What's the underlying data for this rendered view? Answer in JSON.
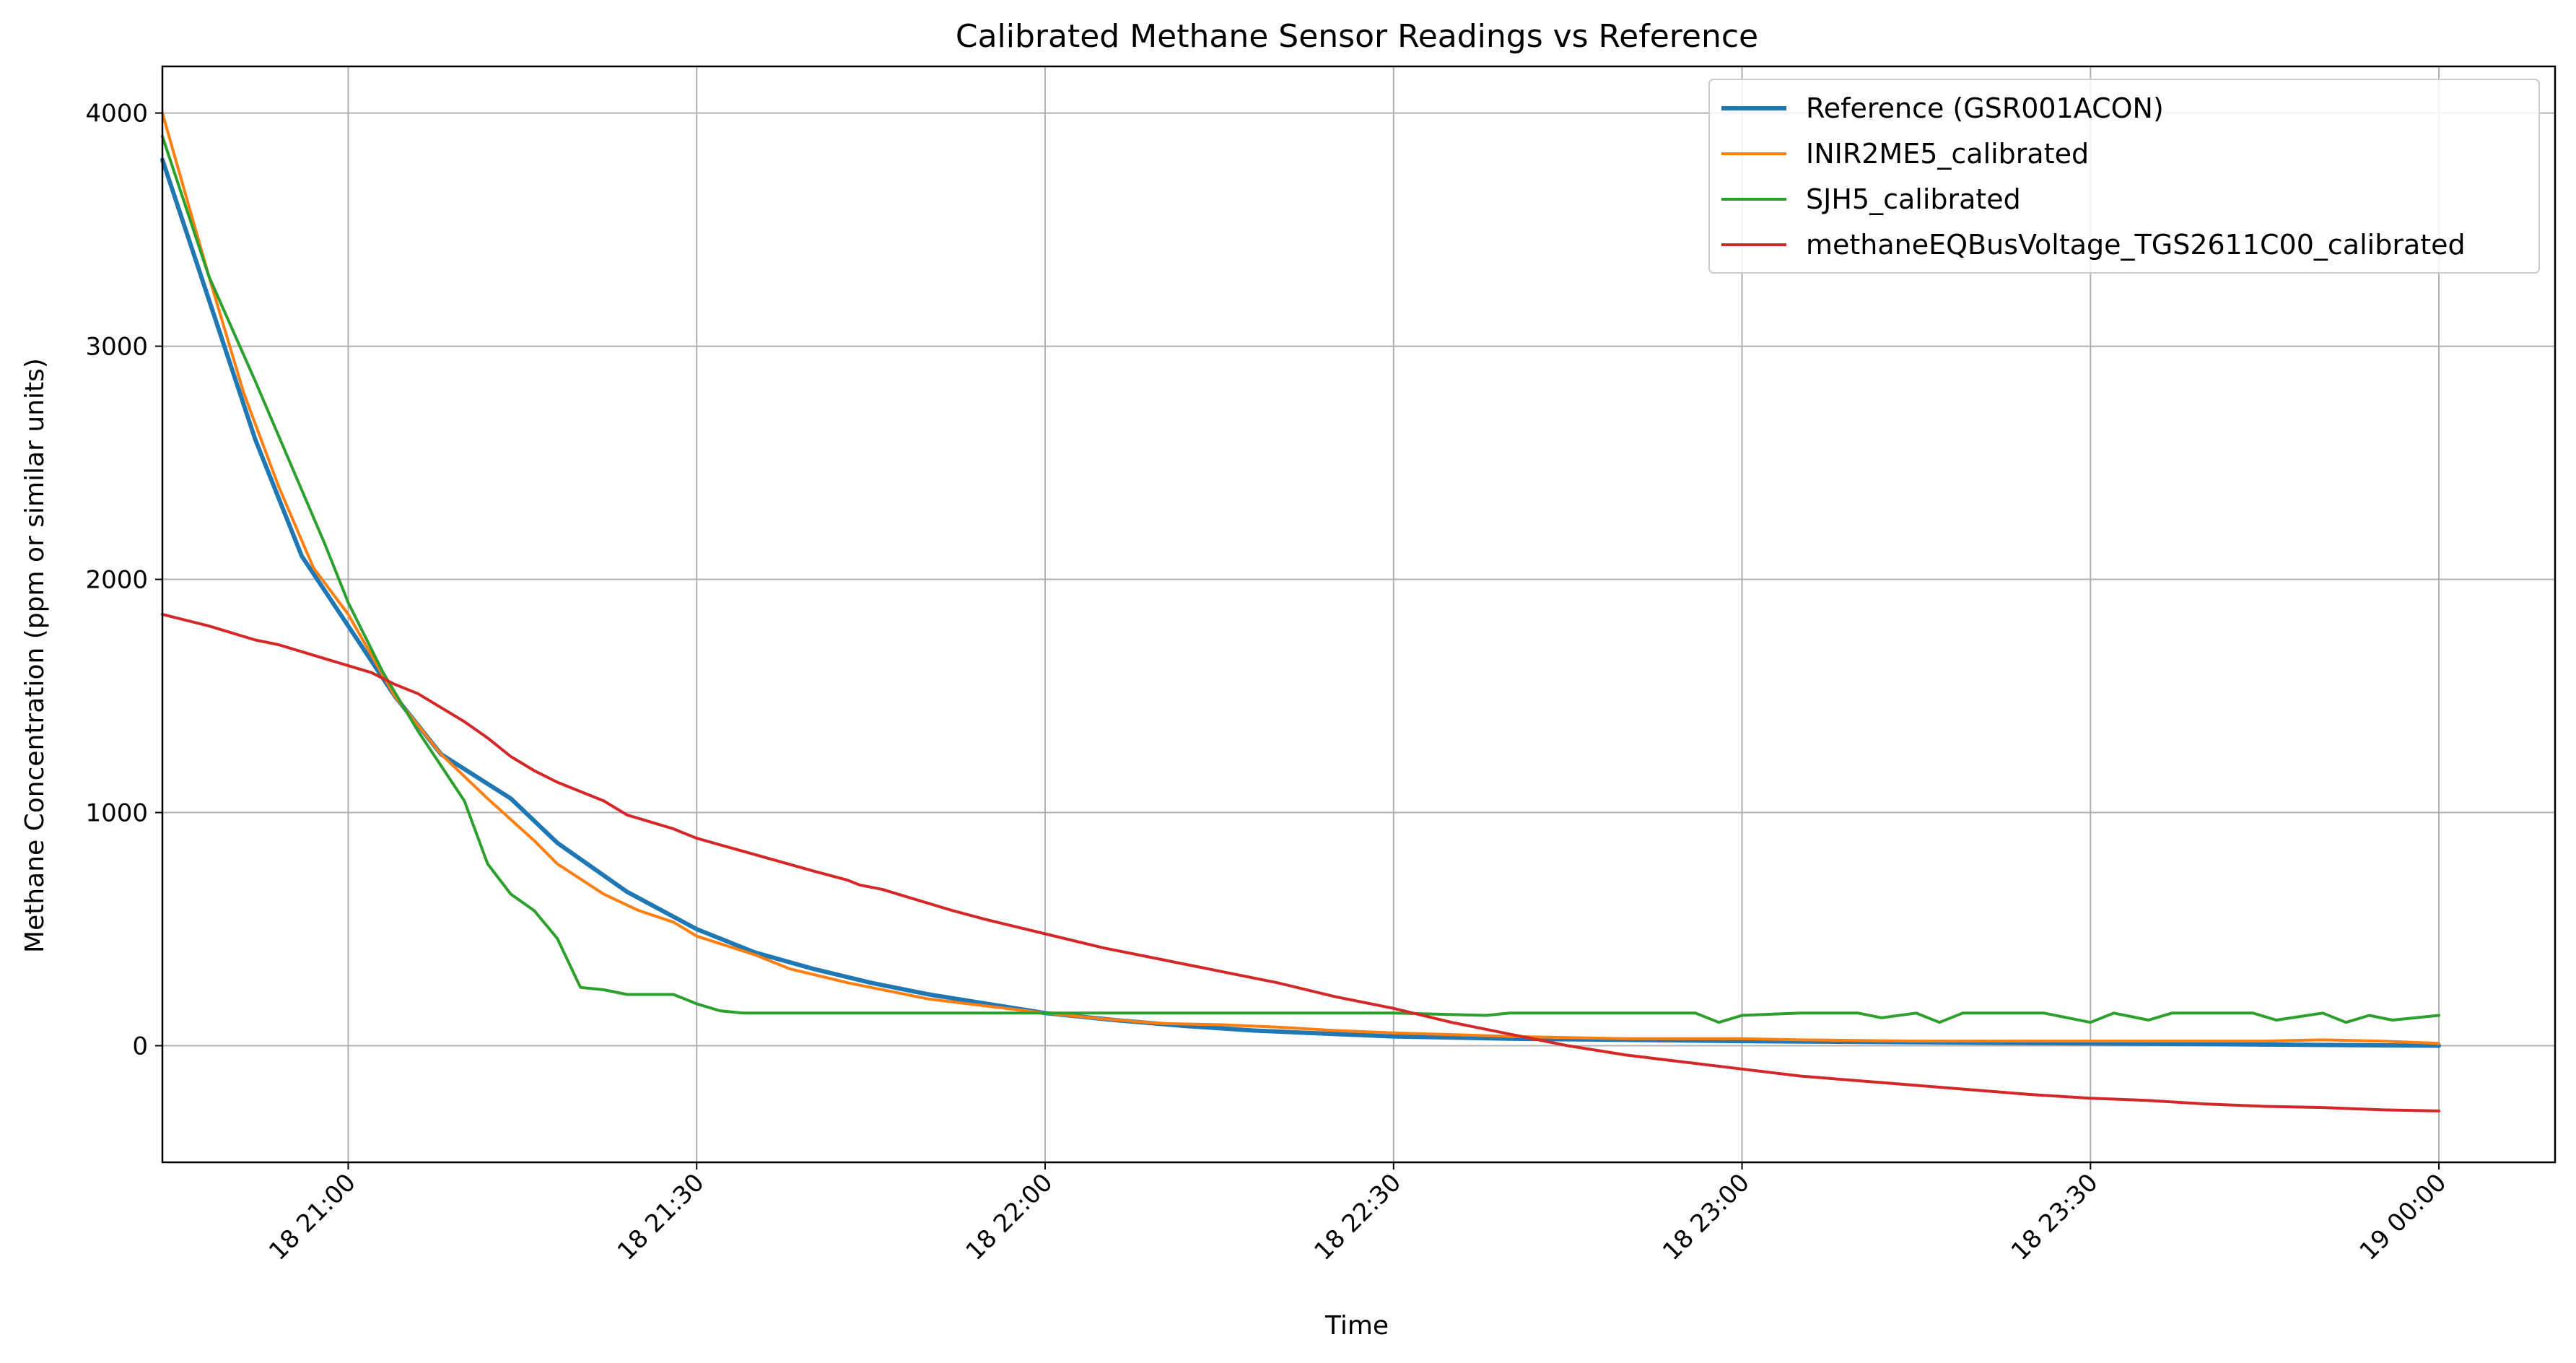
{
  "chart_data": {
    "type": "line",
    "title": "Calibrated Methane Sensor Readings vs Reference",
    "xlabel": "Time",
    "ylabel": "Methane Concentration (ppm or similar units)",
    "x_unit": "time",
    "xlim": [
      "18 20:44",
      "19 00:10"
    ],
    "ylim": [
      -500,
      4200
    ],
    "yticks": [
      0,
      1000,
      2000,
      3000,
      4000
    ],
    "xticks": [
      {
        "t": "18 21:00",
        "label": "18 21:00"
      },
      {
        "t": "18 21:30",
        "label": "18 21:30"
      },
      {
        "t": "18 22:00",
        "label": "18 22:00"
      },
      {
        "t": "18 22:30",
        "label": "18 22:30"
      },
      {
        "t": "18 23:00",
        "label": "18 23:00"
      },
      {
        "t": "18 23:30",
        "label": "18 23:30"
      },
      {
        "t": "19 00:00",
        "label": "19 00:00"
      }
    ],
    "grid": true,
    "legend_position": "top-right",
    "series": [
      {
        "name": "Reference (GSR001ACON)",
        "color": "#1f77b4",
        "width": 6,
        "points": [
          [
            "18 20:44",
            3800
          ],
          [
            "18 20:48",
            3200
          ],
          [
            "18 20:52",
            2600
          ],
          [
            "18 20:56",
            2100
          ],
          [
            "18 21:00",
            1800
          ],
          [
            "18 21:04",
            1500
          ],
          [
            "18 21:08",
            1250
          ],
          [
            "18 21:14",
            1060
          ],
          [
            "18 21:18",
            870
          ],
          [
            "18 21:24",
            660
          ],
          [
            "18 21:30",
            500
          ],
          [
            "18 21:35",
            400
          ],
          [
            "18 21:40",
            330
          ],
          [
            "18 21:45",
            270
          ],
          [
            "18 21:50",
            220
          ],
          [
            "18 21:55",
            180
          ],
          [
            "18 22:00",
            140
          ],
          [
            "18 22:06",
            110
          ],
          [
            "18 22:12",
            85
          ],
          [
            "18 22:18",
            65
          ],
          [
            "18 22:25",
            50
          ],
          [
            "18 22:30",
            40
          ],
          [
            "18 22:40",
            30
          ],
          [
            "18 22:50",
            25
          ],
          [
            "18 23:00",
            20
          ],
          [
            "18 23:15",
            15
          ],
          [
            "18 23:30",
            10
          ],
          [
            "18 23:45",
            5
          ],
          [
            "19 00:00",
            0
          ]
        ]
      },
      {
        "name": "INIR2ME5_calibrated",
        "color": "#ff7f0e",
        "width": 4,
        "points": [
          [
            "18 20:44",
            4000
          ],
          [
            "18 20:48",
            3300
          ],
          [
            "18 20:51",
            2800
          ],
          [
            "18 20:54",
            2400
          ],
          [
            "18 20:57",
            2050
          ],
          [
            "18 21:00",
            1850
          ],
          [
            "18 21:04",
            1500
          ],
          [
            "18 21:08",
            1250
          ],
          [
            "18 21:12",
            1060
          ],
          [
            "18 21:16",
            880
          ],
          [
            "18 21:18",
            780
          ],
          [
            "18 21:22",
            650
          ],
          [
            "18 21:25",
            580
          ],
          [
            "18 21:28",
            530
          ],
          [
            "18 21:30",
            470
          ],
          [
            "18 21:35",
            390
          ],
          [
            "18 21:38",
            330
          ],
          [
            "18 21:43",
            270
          ],
          [
            "18 21:47",
            230
          ],
          [
            "18 21:50",
            200
          ],
          [
            "18 21:55",
            170
          ],
          [
            "18 22:00",
            140
          ],
          [
            "18 22:05",
            115
          ],
          [
            "18 22:10",
            95
          ],
          [
            "18 22:15",
            90
          ],
          [
            "18 22:20",
            80
          ],
          [
            "18 22:25",
            65
          ],
          [
            "18 22:30",
            55
          ],
          [
            "18 22:40",
            40
          ],
          [
            "18 22:50",
            30
          ],
          [
            "18 23:00",
            30
          ],
          [
            "18 23:05",
            25
          ],
          [
            "18 23:15",
            20
          ],
          [
            "18 23:30",
            20
          ],
          [
            "18 23:45",
            20
          ],
          [
            "18 23:50",
            25
          ],
          [
            "18 23:55",
            20
          ],
          [
            "19 00:00",
            10
          ]
        ]
      },
      {
        "name": "SJH5_calibrated",
        "color": "#2ca02c",
        "width": 4,
        "points": [
          [
            "18 20:44",
            3900
          ],
          [
            "18 20:48",
            3300
          ],
          [
            "18 20:52",
            2850
          ],
          [
            "18 20:55",
            2500
          ],
          [
            "18 20:58",
            2150
          ],
          [
            "18 21:00",
            1900
          ],
          [
            "18 21:03",
            1600
          ],
          [
            "18 21:06",
            1350
          ],
          [
            "18 21:08",
            1200
          ],
          [
            "18 21:10",
            1050
          ],
          [
            "18 21:12",
            780
          ],
          [
            "18 21:14",
            650
          ],
          [
            "18 21:16",
            580
          ],
          [
            "18 21:18",
            460
          ],
          [
            "18 21:20",
            250
          ],
          [
            "18 21:22",
            240
          ],
          [
            "18 21:24",
            220
          ],
          [
            "18 21:28",
            220
          ],
          [
            "18 21:30",
            180
          ],
          [
            "18 21:32",
            150
          ],
          [
            "18 21:34",
            140
          ],
          [
            "18 21:45",
            140
          ],
          [
            "18 22:00",
            140
          ],
          [
            "18 22:15",
            140
          ],
          [
            "18 22:30",
            140
          ],
          [
            "18 22:38",
            130
          ],
          [
            "18 22:40",
            140
          ],
          [
            "18 22:45",
            140
          ],
          [
            "18 22:50",
            140
          ],
          [
            "18 22:56",
            140
          ],
          [
            "18 22:58",
            100
          ],
          [
            "18 23:00",
            130
          ],
          [
            "18 23:05",
            140
          ],
          [
            "18 23:10",
            140
          ],
          [
            "18 23:12",
            120
          ],
          [
            "18 23:15",
            140
          ],
          [
            "18 23:17",
            100
          ],
          [
            "18 23:19",
            140
          ],
          [
            "18 23:26",
            140
          ],
          [
            "18 23:30",
            100
          ],
          [
            "18 23:32",
            140
          ],
          [
            "18 23:35",
            110
          ],
          [
            "18 23:37",
            140
          ],
          [
            "18 23:44",
            140
          ],
          [
            "18 23:46",
            110
          ],
          [
            "18 23:50",
            140
          ],
          [
            "18 23:52",
            100
          ],
          [
            "18 23:54",
            130
          ],
          [
            "18 23:56",
            110
          ],
          [
            "19 00:00",
            130
          ]
        ]
      },
      {
        "name": "methaneEQBusVoltage_TGS2611C00_calibrated",
        "color": "#d62728",
        "width": 4,
        "points": [
          [
            "18 20:44",
            1850
          ],
          [
            "18 20:48",
            1800
          ],
          [
            "18 20:52",
            1740
          ],
          [
            "18 20:54",
            1720
          ],
          [
            "18 20:58",
            1660
          ],
          [
            "18 21:00",
            1630
          ],
          [
            "18 21:02",
            1600
          ],
          [
            "18 21:04",
            1550
          ],
          [
            "18 21:06",
            1510
          ],
          [
            "18 21:08",
            1450
          ],
          [
            "18 21:10",
            1390
          ],
          [
            "18 21:12",
            1320
          ],
          [
            "18 21:14",
            1240
          ],
          [
            "18 21:16",
            1180
          ],
          [
            "18 21:18",
            1130
          ],
          [
            "18 21:22",
            1050
          ],
          [
            "18 21:24",
            990
          ],
          [
            "18 21:28",
            930
          ],
          [
            "18 21:30",
            890
          ],
          [
            "18 21:35",
            820
          ],
          [
            "18 21:40",
            750
          ],
          [
            "18 21:43",
            710
          ],
          [
            "18 21:44",
            690
          ],
          [
            "18 21:46",
            670
          ],
          [
            "18 21:48",
            640
          ],
          [
            "18 21:50",
            610
          ],
          [
            "18 21:52",
            580
          ],
          [
            "18 21:55",
            540
          ],
          [
            "18 22:00",
            480
          ],
          [
            "18 22:05",
            420
          ],
          [
            "18 22:10",
            370
          ],
          [
            "18 22:15",
            320
          ],
          [
            "18 22:20",
            270
          ],
          [
            "18 22:25",
            210
          ],
          [
            "18 22:30",
            160
          ],
          [
            "18 22:35",
            100
          ],
          [
            "18 22:40",
            50
          ],
          [
            "18 22:45",
            0
          ],
          [
            "18 22:50",
            -40
          ],
          [
            "18 22:55",
            -70
          ],
          [
            "18 23:00",
            -100
          ],
          [
            "18 23:05",
            -130
          ],
          [
            "18 23:10",
            -150
          ],
          [
            "18 23:15",
            -170
          ],
          [
            "18 23:20",
            -190
          ],
          [
            "18 23:25",
            -210
          ],
          [
            "18 23:30",
            -225
          ],
          [
            "18 23:35",
            -235
          ],
          [
            "18 23:40",
            -250
          ],
          [
            "18 23:45",
            -260
          ],
          [
            "18 23:50",
            -265
          ],
          [
            "18 23:55",
            -275
          ],
          [
            "19 00:00",
            -280
          ]
        ]
      }
    ]
  }
}
